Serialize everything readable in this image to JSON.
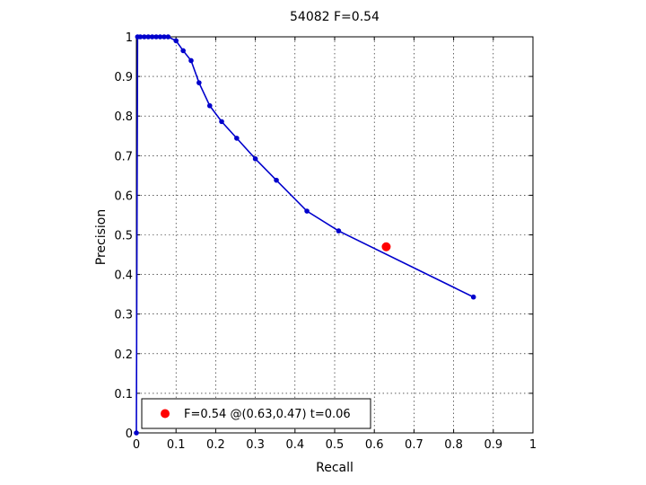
{
  "chart_data": {
    "type": "line",
    "title": "54082 F=0.54",
    "xlabel": "Recall",
    "ylabel": "Precision",
    "xlim": [
      0,
      1
    ],
    "ylim": [
      0,
      1
    ],
    "xticks": [
      0,
      0.1,
      0.2,
      0.3,
      0.4,
      0.5,
      0.6,
      0.7,
      0.8,
      0.9,
      1
    ],
    "xtick_labels": [
      "0",
      "0.1",
      "0.2",
      "0.3",
      "0.4",
      "0.5",
      "0.6",
      "0.7",
      "0.8",
      "0.9",
      "1"
    ],
    "yticks": [
      0,
      0.1,
      0.2,
      0.3,
      0.4,
      0.5,
      0.6,
      0.7,
      0.8,
      0.9,
      1
    ],
    "ytick_labels": [
      "0",
      "0.1",
      "0.2",
      "0.3",
      "0.4",
      "0.5",
      "0.6",
      "0.7",
      "0.8",
      "0.9",
      "1"
    ],
    "grid": true,
    "series": [
      {
        "color": "#0000cc",
        "points": [
          [
            0.0,
            0.0
          ],
          [
            0.003,
            1.0
          ],
          [
            0.01,
            1.0
          ],
          [
            0.02,
            1.0
          ],
          [
            0.03,
            1.0
          ],
          [
            0.04,
            1.0
          ],
          [
            0.05,
            1.0
          ],
          [
            0.06,
            1.0
          ],
          [
            0.07,
            1.0
          ],
          [
            0.08,
            1.0
          ],
          [
            0.1,
            0.99
          ],
          [
            0.118,
            0.965
          ],
          [
            0.138,
            0.94
          ],
          [
            0.158,
            0.884
          ],
          [
            0.185,
            0.826
          ],
          [
            0.215,
            0.786
          ],
          [
            0.253,
            0.744
          ],
          [
            0.3,
            0.692
          ],
          [
            0.353,
            0.638
          ],
          [
            0.43,
            0.56
          ],
          [
            0.51,
            0.51
          ],
          [
            0.85,
            0.343
          ]
        ]
      }
    ],
    "highlight_point": {
      "x": 0.63,
      "y": 0.47,
      "color": "#ff0000"
    },
    "legend": {
      "placement": "bottom-left",
      "text": "F=0.54 @(0.63,0.47) t=0.06"
    }
  }
}
